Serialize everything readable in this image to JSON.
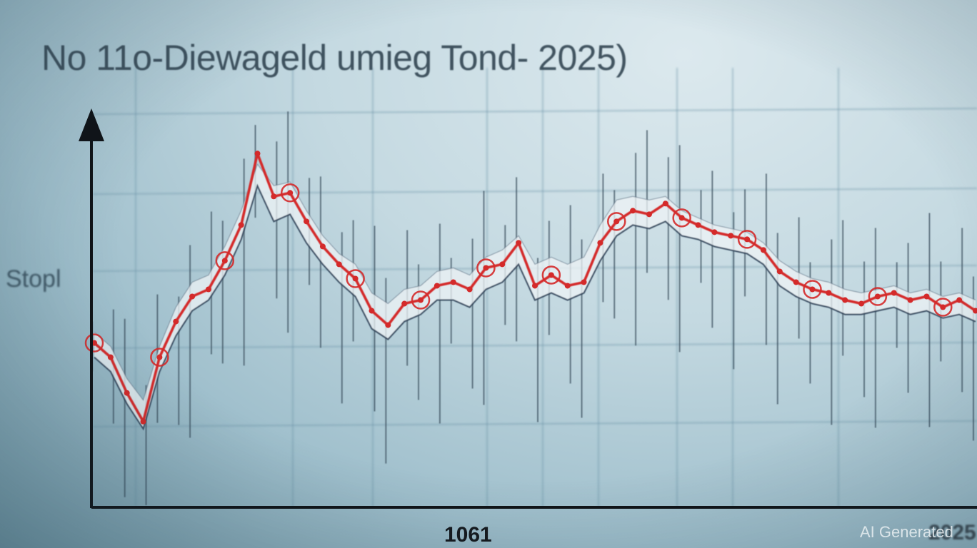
{
  "chart_data": {
    "type": "line",
    "title": "No 11o-Diewageld umieg Tond- 2025)",
    "ylabel": "Stopl",
    "x_tick_label": "1061",
    "x_tick_label_right": "2025",
    "grid": true,
    "series": [
      {
        "color": "#d42a2a",
        "markers": "circle",
        "values": [
          46,
          42,
          32,
          24,
          42,
          52,
          59,
          61,
          69,
          79,
          99,
          87,
          88,
          80,
          73,
          68,
          64,
          55,
          51,
          57,
          58,
          62,
          63,
          61,
          67,
          68,
          74,
          62,
          65,
          62,
          63,
          74,
          80,
          83,
          82,
          85,
          81,
          79,
          77,
          76,
          75,
          72,
          66,
          63,
          61,
          60,
          58,
          57,
          59,
          60,
          58,
          59,
          56,
          58,
          55
        ]
      }
    ],
    "band": {
      "upper": [
        49,
        45,
        36,
        30,
        45,
        56,
        63,
        65,
        73,
        83,
        96,
        90,
        91,
        83,
        76,
        71,
        68,
        60,
        57,
        61,
        62,
        66,
        67,
        65,
        70,
        72,
        76,
        68,
        70,
        68,
        70,
        79,
        86,
        87,
        86,
        87,
        83,
        81,
        79,
        78,
        77,
        74,
        69,
        66,
        64,
        63,
        61,
        60,
        61,
        62,
        60,
        61,
        59,
        60,
        58
      ],
      "lower": [
        42,
        38,
        29,
        22,
        38,
        48,
        55,
        58,
        65,
        75,
        90,
        80,
        82,
        74,
        68,
        63,
        59,
        50,
        47,
        52,
        54,
        58,
        58,
        56,
        61,
        63,
        68,
        58,
        60,
        58,
        60,
        69,
        76,
        79,
        78,
        80,
        76,
        75,
        73,
        72,
        71,
        68,
        62,
        59,
        57,
        56,
        54,
        54,
        55,
        56,
        54,
        55,
        53,
        54,
        52
      ]
    },
    "ylim": [
      0,
      120
    ]
  },
  "watermark": "AI Generated"
}
